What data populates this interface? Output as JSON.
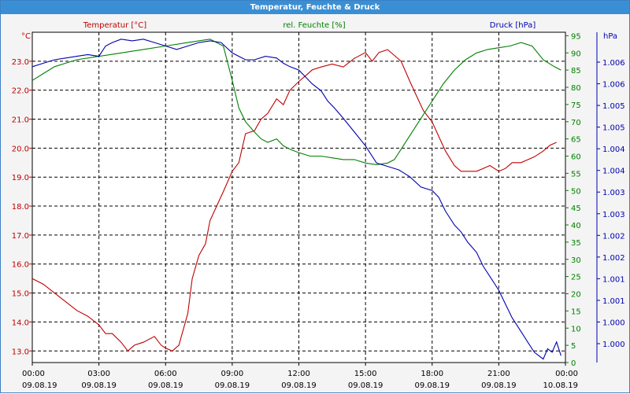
{
  "window": {
    "title": "Temperatur, Feuchte & Druck"
  },
  "chart_data": {
    "type": "line",
    "title": "Temperatur, Feuchte & Druck",
    "grid": true,
    "colors": {
      "temperature": "#c00000",
      "humidity": "#008000",
      "pressure": "#0000b0"
    },
    "axes": {
      "left": {
        "unit": "°C",
        "label": "Temperatur [°C]",
        "range": [
          12.6,
          24.0
        ],
        "ticks": [
          "13.0",
          "14.0",
          "15.0",
          "16.0",
          "17.0",
          "18.0",
          "19.0",
          "20.0",
          "21.0",
          "22.0",
          "23.0"
        ]
      },
      "right1": {
        "unit": "%",
        "label": "rel. Feuchte [%]",
        "range": [
          0,
          96
        ],
        "ticks": [
          "0",
          "5",
          "10",
          "15",
          "20",
          "25",
          "30",
          "35",
          "40",
          "45",
          "50",
          "55",
          "60",
          "65",
          "70",
          "75",
          "80",
          "85",
          "90",
          "95"
        ]
      },
      "right2": {
        "unit": "hPa",
        "label": "Druck [hPa]",
        "ticks": [
          "1.000",
          "1.000",
          "1.001",
          "1.001",
          "1.002",
          "1.002",
          "1.003",
          "1.003",
          "1.004",
          "1.004",
          "1.005",
          "1.005",
          "1.006",
          "1.006"
        ]
      },
      "x": {
        "range": [
          0,
          24
        ],
        "ticks": [
          {
            "time": "00:00",
            "date": "09.08.19"
          },
          {
            "time": "03:00",
            "date": "09.08.19"
          },
          {
            "time": "06:00",
            "date": "09.08.19"
          },
          {
            "time": "09:00",
            "date": "09.08.19"
          },
          {
            "time": "12:00",
            "date": "09.08.19"
          },
          {
            "time": "15:00",
            "date": "09.08.19"
          },
          {
            "time": "18:00",
            "date": "09.08.19"
          },
          {
            "time": "21:00",
            "date": "09.08.19"
          },
          {
            "time": "00:00",
            "date": "10.08.19"
          }
        ]
      }
    },
    "series": [
      {
        "name": "Temperatur [°C]",
        "axis": "left",
        "x": [
          0,
          0.5,
          1,
          1.5,
          2,
          2.5,
          3,
          3.3,
          3.6,
          4,
          4.3,
          4.6,
          5,
          5.5,
          5.8,
          6,
          6.3,
          6.6,
          7,
          7.2,
          7.5,
          7.8,
          8,
          8.3,
          8.6,
          9,
          9.3,
          9.6,
          10,
          10.3,
          10.6,
          11,
          11.3,
          11.6,
          12,
          12.3,
          12.6,
          13,
          13.5,
          14,
          14.5,
          15,
          15.3,
          15.6,
          16,
          16.3,
          16.6,
          17,
          17.3,
          17.6,
          18,
          18.3,
          18.6,
          19,
          19.3,
          19.6,
          20,
          20.3,
          20.6,
          21,
          21.3,
          21.6,
          22,
          22.3,
          22.6,
          23,
          23.3,
          23.6
        ],
        "y": [
          15.5,
          15.3,
          15.0,
          14.7,
          14.4,
          14.2,
          13.9,
          13.6,
          13.6,
          13.3,
          13.0,
          13.2,
          13.3,
          13.5,
          13.2,
          13.1,
          13.0,
          13.2,
          14.3,
          15.5,
          16.3,
          16.7,
          17.5,
          18.0,
          18.5,
          19.2,
          19.5,
          20.5,
          20.6,
          21.0,
          21.2,
          21.7,
          21.5,
          22.0,
          22.3,
          22.5,
          22.7,
          22.8,
          22.9,
          22.8,
          23.1,
          23.3,
          23.0,
          23.3,
          23.4,
          23.2,
          23.0,
          22.3,
          21.8,
          21.3,
          20.9,
          20.4,
          19.9,
          19.4,
          19.2,
          19.2,
          19.2,
          19.3,
          19.4,
          19.2,
          19.3,
          19.5,
          19.5,
          19.6,
          19.7,
          19.9,
          20.1,
          20.2
        ]
      },
      {
        "name": "rel. Feuchte [%]",
        "axis": "right1",
        "x": [
          0,
          0.5,
          1,
          1.5,
          2,
          3,
          4,
          5,
          6,
          7,
          7.5,
          8,
          8.3,
          8.6,
          9,
          9.3,
          9.6,
          10,
          10.3,
          10.6,
          11,
          11.3,
          11.6,
          12,
          12.5,
          13,
          13.5,
          14,
          14.5,
          15,
          15.5,
          16,
          16.3,
          16.6,
          17,
          17.5,
          18,
          18.5,
          19,
          19.5,
          20,
          20.5,
          21,
          21.5,
          22,
          22.5,
          23,
          23.5,
          23.8
        ],
        "y": [
          82,
          84,
          86,
          87,
          88,
          89,
          90,
          91,
          92,
          93,
          93.5,
          94,
          93,
          92,
          82,
          74,
          70,
          67,
          65,
          64,
          65,
          63,
          62,
          61,
          60,
          60,
          59.5,
          59,
          59,
          58,
          57.5,
          58,
          59,
          62,
          66,
          71,
          76,
          81,
          85,
          88,
          90,
          91,
          91.5,
          92,
          93,
          92,
          88,
          86,
          85
        ]
      },
      {
        "name": "Druck [hPa]",
        "axis": "right2",
        "axis_scale": "relative",
        "x": [
          0,
          0.5,
          1,
          1.5,
          2,
          2.5,
          3,
          3.3,
          3.6,
          4,
          4.5,
          5,
          5.5,
          6,
          6.5,
          7,
          7.5,
          8,
          8.5,
          9,
          9.3,
          9.6,
          10,
          10.5,
          11,
          11.3,
          11.6,
          12,
          12.3,
          12.6,
          13,
          13.3,
          13.6,
          14,
          14.5,
          15,
          15.5,
          16,
          16.5,
          17,
          17.5,
          18,
          18.3,
          18.6,
          19,
          19.3,
          19.6,
          20,
          20.3,
          20.6,
          21,
          21.3,
          21.6,
          22,
          22.3,
          22.6,
          23,
          23.2,
          23.4,
          23.6,
          23.8
        ],
        "y": [
          86,
          87,
          88,
          88.5,
          89,
          89.5,
          89,
          92,
          93,
          94,
          93.5,
          94,
          93,
          92,
          91,
          92,
          93,
          93.5,
          93,
          90,
          89,
          88,
          88,
          89,
          88.5,
          87,
          86,
          85,
          83,
          81,
          79,
          76,
          74,
          71,
          67,
          63,
          58,
          57,
          56,
          54,
          51,
          50,
          48,
          44,
          40,
          38,
          35,
          32,
          28,
          25,
          21,
          17,
          13,
          9,
          6,
          3,
          1,
          4,
          3,
          6,
          2
        ]
      }
    ]
  }
}
